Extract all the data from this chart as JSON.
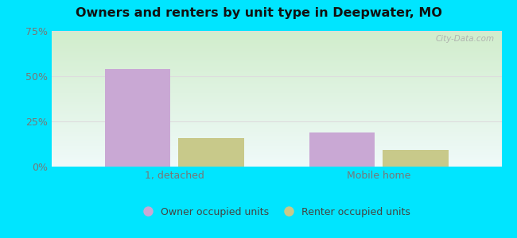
{
  "title": "Owners and renters by unit type in Deepwater, MO",
  "categories": [
    "1, detached",
    "Mobile home"
  ],
  "owner_values": [
    54,
    19
  ],
  "renter_values": [
    16,
    9
  ],
  "owner_color": "#c9a8d4",
  "renter_color": "#c8c98a",
  "ylim": [
    0,
    75
  ],
  "yticks": [
    0,
    25,
    50,
    75
  ],
  "yticklabels": [
    "0%",
    "25%",
    "50%",
    "75%"
  ],
  "bar_width": 0.32,
  "outer_background": "#00e5ff",
  "legend_owner": "Owner occupied units",
  "legend_renter": "Renter occupied units",
  "watermark": "City-Data.com",
  "tick_color": "#777777",
  "grid_color": "#dddddd"
}
